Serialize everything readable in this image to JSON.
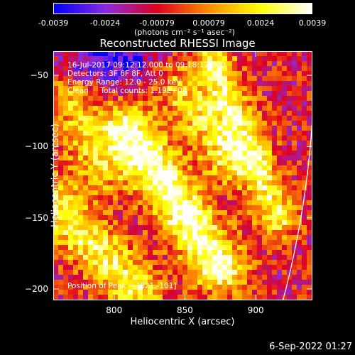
{
  "colorbar": {
    "ticks": [
      "-0.0039",
      "-0.0024",
      "-0.00079",
      "0.00079",
      "0.0024",
      "0.0039"
    ],
    "units": "(photons cm⁻² s⁻¹ asec⁻²)",
    "colors": [
      "#0000ff",
      "#8a2be2",
      "#e0001e",
      "#ff8c00",
      "#ffff00",
      "#ffffff"
    ]
  },
  "chart_data": {
    "type": "heatmap",
    "title": "Reconstructed RHESSI Image",
    "xlabel": "Heliocentric X (arcsec)",
    "ylabel": "Heliocentric Y (arcsec)",
    "xlim": [
      757,
      940
    ],
    "ylim": [
      -208,
      -33
    ],
    "xticks": [
      800,
      850,
      900
    ],
    "yticks": [
      -50,
      -100,
      -150,
      -200
    ],
    "zlim": [
      -0.0039,
      0.0039
    ],
    "info": [
      "16-Jul-2017 09:12:12.000 to 09:18:12.000",
      "Detectors: 3F 6F 8F, Att 0",
      "Energy Range: 12.0 - 25.0 keV",
      "Clean     Total counts: 1.19E+04"
    ],
    "peak_text": "Position of Peak = [821,-101]",
    "peak": [
      821,
      -101
    ]
  },
  "timestamp": "6-Sep-2022 01:27"
}
